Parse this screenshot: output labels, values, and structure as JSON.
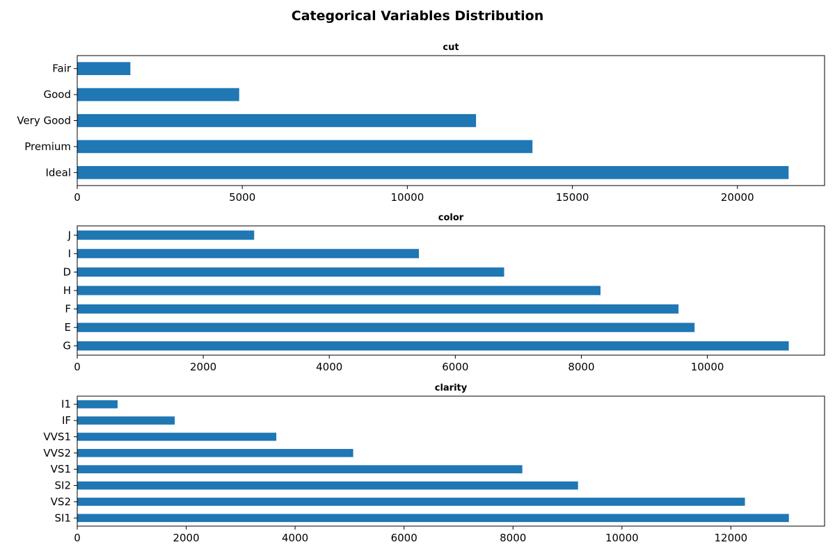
{
  "figure": {
    "title": "Categorical Variables Distribution"
  },
  "chart_data": [
    {
      "type": "bar",
      "orientation": "horizontal",
      "title": "cut",
      "categories": [
        "Ideal",
        "Premium",
        "Very Good",
        "Good",
        "Fair"
      ],
      "values": [
        21551,
        13791,
        12082,
        4906,
        1610
      ],
      "xlim": [
        0,
        22640
      ],
      "xticks": [
        0,
        5000,
        10000,
        15000,
        20000
      ],
      "xlabel": "",
      "ylabel": "",
      "grid": false,
      "color": "#1f77b4"
    },
    {
      "type": "bar",
      "orientation": "horizontal",
      "title": "color",
      "categories": [
        "G",
        "E",
        "F",
        "H",
        "D",
        "I",
        "J"
      ],
      "values": [
        11292,
        9797,
        9542,
        8304,
        6775,
        5422,
        2808
      ],
      "xlim": [
        0,
        11860
      ],
      "xticks": [
        0,
        2000,
        4000,
        6000,
        8000,
        10000
      ],
      "xlabel": "",
      "ylabel": "",
      "grid": false,
      "color": "#1f77b4"
    },
    {
      "type": "bar",
      "orientation": "horizontal",
      "title": "clarity",
      "categories": [
        "SI1",
        "VS2",
        "SI2",
        "VS1",
        "VVS2",
        "VVS1",
        "IF",
        "I1"
      ],
      "values": [
        13065,
        12258,
        9194,
        8171,
        5066,
        3655,
        1790,
        741
      ],
      "xlim": [
        0,
        13720
      ],
      "xticks": [
        0,
        2000,
        4000,
        6000,
        8000,
        10000,
        12000
      ],
      "xlabel": "",
      "ylabel": "",
      "grid": false,
      "color": "#1f77b4"
    }
  ]
}
